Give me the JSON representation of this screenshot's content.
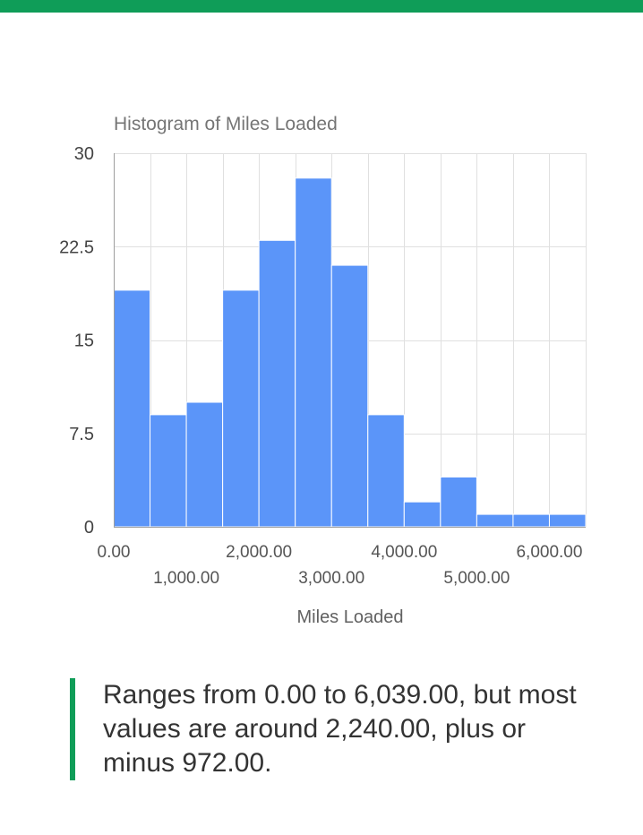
{
  "colors": {
    "accent": "#0f9d58",
    "bar": "#5b95f9"
  },
  "chart_data": {
    "type": "bar",
    "title": "Histogram of Miles Loaded",
    "xlabel": "Miles Loaded",
    "ylabel": "",
    "ylim": [
      0,
      30
    ],
    "xlim": [
      0,
      6500
    ],
    "bin_width": 500,
    "bins": [
      {
        "start": 0,
        "end": 500,
        "count": 19
      },
      {
        "start": 500,
        "end": 1000,
        "count": 9
      },
      {
        "start": 1000,
        "end": 1500,
        "count": 10
      },
      {
        "start": 1500,
        "end": 2000,
        "count": 19
      },
      {
        "start": 2000,
        "end": 2500,
        "count": 23
      },
      {
        "start": 2500,
        "end": 3000,
        "count": 28
      },
      {
        "start": 3000,
        "end": 3500,
        "count": 21
      },
      {
        "start": 3500,
        "end": 4000,
        "count": 9
      },
      {
        "start": 4000,
        "end": 4500,
        "count": 2
      },
      {
        "start": 4500,
        "end": 5000,
        "count": 4
      },
      {
        "start": 5000,
        "end": 5500,
        "count": 1
      },
      {
        "start": 5500,
        "end": 6000,
        "count": 1
      },
      {
        "start": 6000,
        "end": 6500,
        "count": 1
      }
    ],
    "y_ticks": [
      {
        "value": 0,
        "label": "0"
      },
      {
        "value": 7.5,
        "label": "7.5"
      },
      {
        "value": 15,
        "label": "15"
      },
      {
        "value": 22.5,
        "label": "22.5"
      },
      {
        "value": 30,
        "label": "30"
      }
    ],
    "x_ticks": [
      {
        "value": 0,
        "label": "0.00",
        "row": 0
      },
      {
        "value": 1000,
        "label": "1,000.00",
        "row": 1
      },
      {
        "value": 2000,
        "label": "2,000.00",
        "row": 0
      },
      {
        "value": 3000,
        "label": "3,000.00",
        "row": 1
      },
      {
        "value": 4000,
        "label": "4,000.00",
        "row": 0
      },
      {
        "value": 5000,
        "label": "5,000.00",
        "row": 1
      },
      {
        "value": 6000,
        "label": "6,000.00",
        "row": 0
      }
    ],
    "grid": true,
    "legend": "none"
  },
  "summary": {
    "text": "Ranges from 0.00 to 6,039.00, but most values are around 2,240.00, plus or minus 972.00."
  }
}
